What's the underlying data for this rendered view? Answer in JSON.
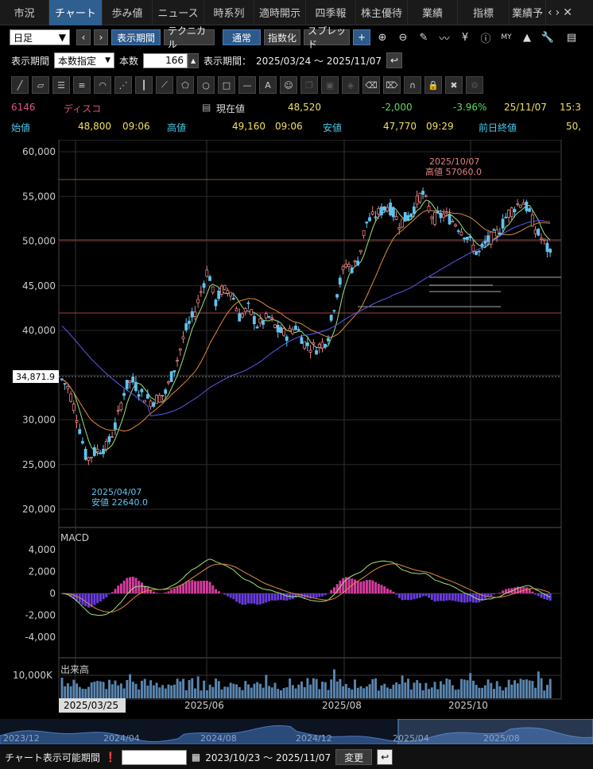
{
  "tabs": [
    {
      "label": "市況",
      "active": false
    },
    {
      "label": "チャート",
      "active": true
    },
    {
      "label": "歩み値",
      "active": false
    },
    {
      "label": "ニュース",
      "active": false
    },
    {
      "label": "時系列",
      "active": false
    },
    {
      "label": "適時開示",
      "active": false
    },
    {
      "label": "四季報",
      "active": false
    },
    {
      "label": "株主優待",
      "active": false
    },
    {
      "label": "業績",
      "active": false
    },
    {
      "label": "指標",
      "active": false
    },
    {
      "label": "業績予",
      "active": false
    }
  ],
  "toolbar": {
    "period_select": "日足",
    "display_period_btn": "表示期間",
    "technical_btn": "テクニカル",
    "normal_btn": "通常",
    "index_btn": "指数化",
    "spread_btn": "スプレッド",
    "zoom_in_icon": "zoom-in-icon",
    "zoom_out_icon": "zoom-out-icon"
  },
  "period_row": {
    "label": "表示期間",
    "mode_select": "本数指定",
    "count_label": "本数",
    "count_value": "166",
    "range_label": "表示期間：",
    "range_value": "2025/03/24 ～ 2025/11/07"
  },
  "quote": {
    "code": "6146",
    "name": "ディスコ",
    "current_label": "現在値",
    "current_value": "48,520",
    "change": "-2,000",
    "change_pct": "-3.96%",
    "date": "25/11/07",
    "time": "15:3",
    "open_label": "始値",
    "open_value": "48,800",
    "open_time": "09:06",
    "high_label": "高値",
    "high_value": "49,160",
    "high_time": "09:06",
    "low_label": "安値",
    "low_value": "47,770",
    "low_time": "09:29",
    "prev_label": "前日終値",
    "prev_value": "50,"
  },
  "chart_data": {
    "type": "candlestick",
    "y_ticks": [
      "60,000",
      "55,000",
      "50,000",
      "45,000",
      "40,000",
      "35,000",
      "30,000",
      "25,000",
      "20,000"
    ],
    "ylim": [
      20000,
      60000
    ],
    "cursor_price": "34,871.9",
    "annotation_high": {
      "date": "2025/10/07",
      "label": "高値 57060.0"
    },
    "annotation_low": {
      "date": "2025/04/07",
      "label": "安値 22640.0"
    },
    "x_labels": [
      "2025/06",
      "2025/08",
      "2025/10"
    ],
    "cursor_date": "2025/03/25",
    "macd": {
      "label": "MACD",
      "y_ticks": [
        "4,000",
        "2,000",
        "0",
        "-2,000",
        "-4,000"
      ]
    },
    "volume": {
      "label": "出来高",
      "y_ticks": [
        "10,000K"
      ]
    },
    "colors": {
      "up": "#62c2ee",
      "down": "#e68080",
      "ma_short": "#9ee27a",
      "ma_mid": "#e0893d",
      "ma_long": "#5a5af0",
      "hist_pos": "#d63ca0",
      "hist_neg": "#6a3ce0"
    }
  },
  "overview": {
    "labels": [
      "2023/12",
      "2024/04",
      "2024/08",
      "2024/12",
      "2025/04",
      "2025/08"
    ]
  },
  "bottom": {
    "label": "チャート表示可能期間",
    "range": "2023/10/23 ～ 2025/11/07",
    "change_btn": "変更"
  }
}
